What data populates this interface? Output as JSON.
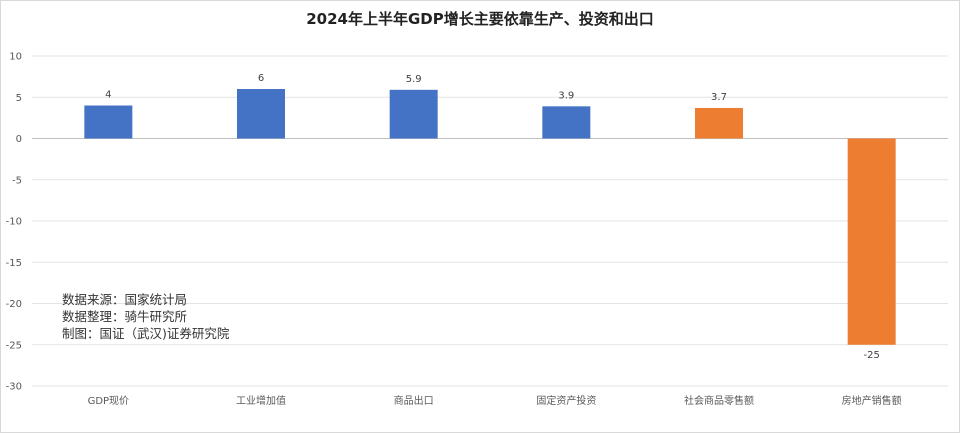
{
  "chart_data": {
    "type": "bar",
    "title": "2024年上半年GDP增长主要依靠生产、投资和出口",
    "categories": [
      "GDP现价",
      "工业增加值",
      "商品出口",
      "固定资产投资",
      "社会商品零售额",
      "房地产销售额"
    ],
    "values": [
      4,
      6,
      5.9,
      3.9,
      3.7,
      -25
    ],
    "data_labels": [
      "4",
      "6",
      "5.9",
      "3.9",
      "3.7",
      "-25"
    ],
    "bar_colors": [
      "#4472c4",
      "#4472c4",
      "#4472c4",
      "#4472c4",
      "#ed7d31",
      "#ed7d31"
    ],
    "ylim": [
      -30,
      10
    ],
    "yticks": [
      10,
      5,
      0,
      -5,
      -10,
      -15,
      -20,
      -25,
      -30
    ],
    "grid": true,
    "xlabel": "",
    "ylabel": ""
  },
  "notes": {
    "source": "数据来源：国家统计局",
    "compiled": "数据整理：骑牛研究所",
    "made_by": "制图：国证（武汉)证券研究院"
  }
}
